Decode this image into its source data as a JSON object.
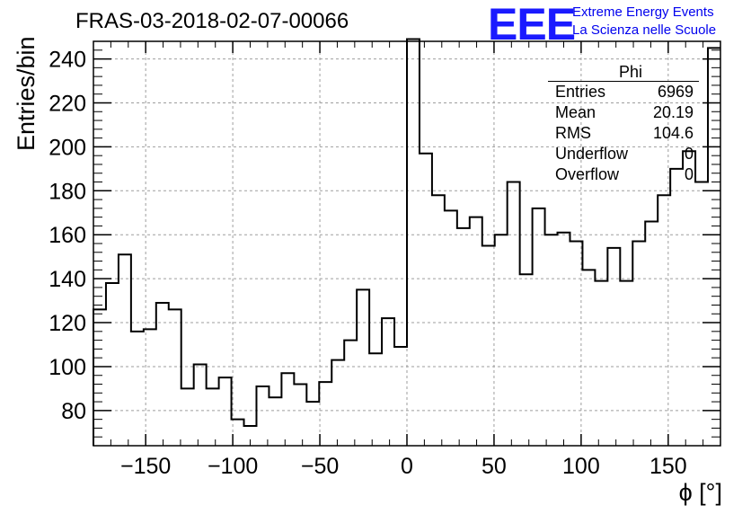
{
  "header": {
    "title": "FRAS-03-2018-02-07-00066",
    "logo": "EEE",
    "brand_line1": "Extreme Energy Events",
    "brand_line2": "La Scienza nelle Scuole"
  },
  "colors": {
    "logo": "#1a1aff",
    "brand": "#0000ee",
    "grid": "#9e9e9e",
    "line": "#000000"
  },
  "stats_box": {
    "name": "Phi",
    "rows": [
      {
        "label": "Entries",
        "value": "6969"
      },
      {
        "label": "Mean",
        "value": "20.19"
      },
      {
        "label": "RMS",
        "value": "104.6"
      },
      {
        "label": "Underflow",
        "value": "0"
      },
      {
        "label": "Overflow",
        "value": "0"
      }
    ]
  },
  "chart_data": {
    "type": "histogram-step",
    "title": "FRAS-03-2018-02-07-00066",
    "xlabel": "ϕ [°]",
    "ylabel": "Entries/bin",
    "xlim": [
      -180,
      180
    ],
    "ylim": [
      64,
      248
    ],
    "bin_width": 7.2,
    "xticks": [
      -150,
      -100,
      -50,
      0,
      50,
      100,
      150
    ],
    "xtick_labels": [
      "−150",
      "−100",
      "−50",
      "0",
      "50",
      "100",
      "150"
    ],
    "yticks": [
      80,
      100,
      120,
      140,
      160,
      180,
      200,
      220,
      240
    ],
    "yticks_labels": [
      "80",
      "100",
      "120",
      "140",
      "160",
      "180",
      "200",
      "220",
      "240"
    ],
    "grid": true,
    "series": [
      {
        "bin_start": [
          -180,
          -172.8,
          -165.6,
          -158.4,
          -151.2,
          -144,
          -136.8,
          -129.6,
          -122.4,
          -115.2,
          -108,
          -100.8,
          -93.6,
          -86.4,
          -79.2,
          -72,
          -64.8,
          -57.6,
          -50.4,
          -43.2,
          -36,
          -28.8,
          -21.6,
          -14.4,
          -7.2,
          0,
          7.2,
          14.4,
          21.6,
          28.8,
          36,
          43.2,
          50.4,
          57.6,
          64.8,
          72,
          79.2,
          86.4,
          93.6,
          100.8,
          108,
          115.2,
          122.4,
          129.6,
          136.8,
          144,
          151.2,
          158.4,
          165.6,
          172.8
        ],
        "values": [
          126,
          138,
          151,
          116,
          117,
          129,
          126,
          90,
          101,
          90,
          95,
          76,
          73,
          91,
          86,
          97,
          92,
          84,
          93,
          103,
          112,
          135,
          106,
          122,
          109,
          249,
          197,
          178,
          171,
          163,
          168,
          155,
          160,
          184,
          142,
          172,
          160,
          161,
          157,
          144,
          139,
          154,
          139,
          157,
          166,
          178,
          190,
          198,
          184,
          245
        ]
      }
    ]
  }
}
